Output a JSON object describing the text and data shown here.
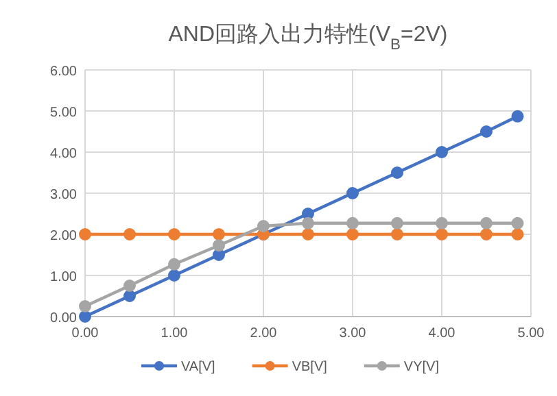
{
  "chart_data": {
    "type": "line",
    "title": "AND回路入出力特性(V$_{B}$=2V)",
    "x": [
      0,
      0.5,
      1,
      1.5,
      2,
      2.5,
      3,
      3.5,
      4,
      4.5,
      4.85
    ],
    "series": [
      {
        "name": "VA[V]",
        "color": "#4472c4",
        "values": [
          0,
          0.5,
          1,
          1.5,
          2,
          2.5,
          3,
          3.5,
          4,
          4.5,
          4.87
        ]
      },
      {
        "name": "VB[V]",
        "color": "#ed7d31",
        "values": [
          2,
          2,
          2,
          2,
          2,
          2,
          2,
          2,
          2,
          2,
          2
        ]
      },
      {
        "name": "VY[V]",
        "color": "#a5a5a5",
        "values": [
          0.25,
          0.75,
          1.27,
          1.73,
          2.2,
          2.27,
          2.27,
          2.27,
          2.27,
          2.27,
          2.27
        ]
      }
    ],
    "xlim": [
      0,
      5
    ],
    "xticks": [
      {
        "value": 0,
        "label": "0.00"
      },
      {
        "value": 1,
        "label": "1.00"
      },
      {
        "value": 2,
        "label": "2.00"
      },
      {
        "value": 3,
        "label": "3.00"
      },
      {
        "value": 4,
        "label": "4.00"
      },
      {
        "value": 5,
        "label": "5.00"
      }
    ],
    "ylim": [
      0,
      6
    ],
    "yticks": [
      {
        "value": 0,
        "label": "0.00"
      },
      {
        "value": 1,
        "label": "1.00"
      },
      {
        "value": 2,
        "label": "2.00"
      },
      {
        "value": 3,
        "label": "3.00"
      },
      {
        "value": 4,
        "label": "4.00"
      },
      {
        "value": 5,
        "label": "5.00"
      },
      {
        "value": 6,
        "label": "6.00"
      }
    ],
    "grid": true,
    "legend": "bottom",
    "marker": "circle",
    "line_style": "solid"
  }
}
